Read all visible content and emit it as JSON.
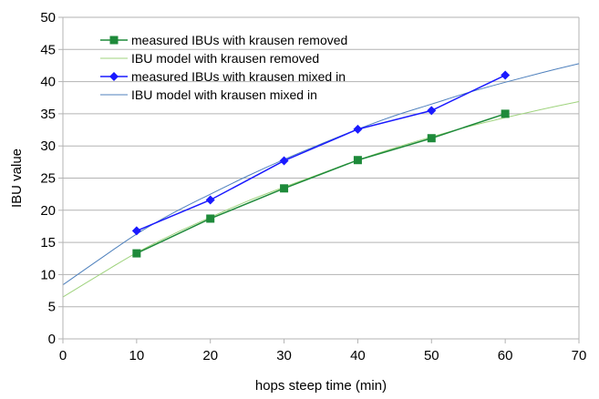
{
  "chart_data": {
    "type": "scatter",
    "title": "",
    "xlabel": "hops steep time (min)",
    "ylabel": "IBU value",
    "xlim": [
      0,
      70
    ],
    "ylim": [
      0,
      50
    ],
    "xticks": [
      0,
      10,
      20,
      30,
      40,
      50,
      60,
      70
    ],
    "yticks": [
      0,
      5,
      10,
      15,
      20,
      25,
      30,
      35,
      40,
      45,
      50
    ],
    "grid": "horizontal",
    "legend_position": "top-left",
    "series": [
      {
        "name": "measured IBUs with krausen removed",
        "kind": "line-markers",
        "marker": "square",
        "color": "#1e8a3a",
        "x": [
          10,
          20,
          30,
          40,
          50,
          60
        ],
        "y": [
          13.3,
          18.7,
          23.4,
          27.8,
          31.2,
          35.0
        ]
      },
      {
        "name": "IBU model with krausen removed",
        "kind": "line",
        "color": "#9fd37d",
        "x": [
          0,
          5,
          10,
          15,
          20,
          25,
          30,
          35,
          40,
          45,
          50,
          55,
          60,
          65,
          70
        ],
        "y": [
          6.5,
          10.0,
          13.4,
          16.3,
          18.9,
          21.4,
          23.6,
          25.7,
          27.8,
          29.7,
          31.4,
          33.0,
          34.4,
          35.7,
          36.9
        ]
      },
      {
        "name": "measured IBUs with krausen mixed in",
        "kind": "line-markers",
        "marker": "diamond",
        "color": "#1a1aff",
        "x": [
          10,
          20,
          30,
          40,
          50,
          60
        ],
        "y": [
          16.8,
          21.6,
          27.7,
          32.6,
          35.5,
          41.0
        ]
      },
      {
        "name": "IBU model with krausen mixed in",
        "kind": "line",
        "color": "#4f81bd",
        "x": [
          0,
          5,
          10,
          15,
          20,
          25,
          30,
          35,
          40,
          45,
          50,
          55,
          60,
          65,
          70
        ],
        "y": [
          8.4,
          12.4,
          16.3,
          19.6,
          22.5,
          25.3,
          27.9,
          30.3,
          32.6,
          34.7,
          36.5,
          38.3,
          39.9,
          41.4,
          42.8
        ]
      }
    ]
  }
}
